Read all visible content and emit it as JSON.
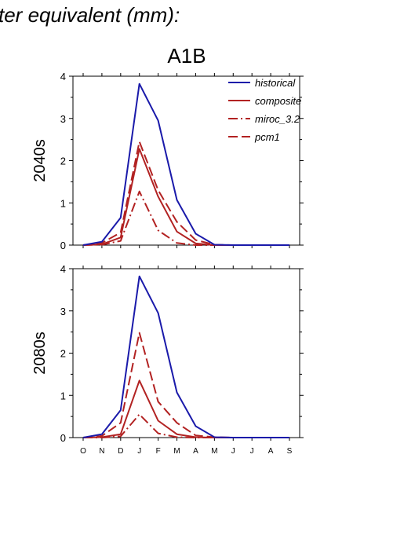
{
  "header": "ter equivalent (mm):",
  "title": "A1B",
  "colors": {
    "historical": "#1a1aaa",
    "model": "#b22222",
    "axis": "#000000"
  },
  "legend": [
    {
      "label": "historical",
      "style": "solid",
      "color": "#1a1aaa"
    },
    {
      "label": "composite",
      "style": "solid",
      "color": "#b22222"
    },
    {
      "label": "miroc_3.2",
      "style": "dashdot",
      "color": "#b22222"
    },
    {
      "label": "pcm1",
      "style": "dash",
      "color": "#b22222"
    }
  ],
  "chart_data": [
    {
      "type": "line",
      "row_label": "2040s",
      "categories": [
        "O",
        "N",
        "D",
        "J",
        "F",
        "M",
        "A",
        "M",
        "J",
        "J",
        "A",
        "S"
      ],
      "ylim": [
        0,
        4
      ],
      "yticks": [
        "0",
        "1",
        "2",
        "3",
        "4"
      ],
      "legend_position": "top-right",
      "series": [
        {
          "name": "historical",
          "values": [
            0,
            0.08,
            0.65,
            3.82,
            2.95,
            1.07,
            0.27,
            0.01,
            0,
            0,
            0,
            0
          ]
        },
        {
          "name": "composite",
          "values": [
            0,
            0.02,
            0.18,
            2.28,
            1.15,
            0.32,
            0.04,
            0,
            0,
            0,
            0,
            0
          ]
        },
        {
          "name": "miroc_3.2",
          "values": [
            0,
            0.01,
            0.1,
            1.27,
            0.35,
            0.05,
            0,
            0,
            0,
            0,
            0,
            0
          ]
        },
        {
          "name": "pcm1",
          "values": [
            0,
            0.05,
            0.3,
            2.45,
            1.3,
            0.55,
            0.12,
            0.01,
            0,
            0,
            0,
            0
          ]
        }
      ]
    },
    {
      "type": "line",
      "row_label": "2080s",
      "categories": [
        "O",
        "N",
        "D",
        "J",
        "F",
        "M",
        "A",
        "M",
        "J",
        "J",
        "A",
        "S"
      ],
      "ylim": [
        0,
        4
      ],
      "yticks": [
        "0",
        "1",
        "2",
        "3",
        "4"
      ],
      "series": [
        {
          "name": "historical",
          "values": [
            0,
            0.08,
            0.65,
            3.82,
            2.95,
            1.07,
            0.27,
            0.01,
            0,
            0,
            0,
            0
          ]
        },
        {
          "name": "composite",
          "values": [
            0,
            0.01,
            0.08,
            1.35,
            0.4,
            0.08,
            0.01,
            0,
            0,
            0,
            0,
            0
          ]
        },
        {
          "name": "miroc_3.2",
          "values": [
            0,
            0,
            0.03,
            0.55,
            0.1,
            0.01,
            0,
            0,
            0,
            0,
            0,
            0
          ]
        },
        {
          "name": "pcm1",
          "values": [
            0,
            0.04,
            0.35,
            2.48,
            0.85,
            0.35,
            0.05,
            0.01,
            0,
            0,
            0,
            0
          ]
        }
      ]
    }
  ]
}
